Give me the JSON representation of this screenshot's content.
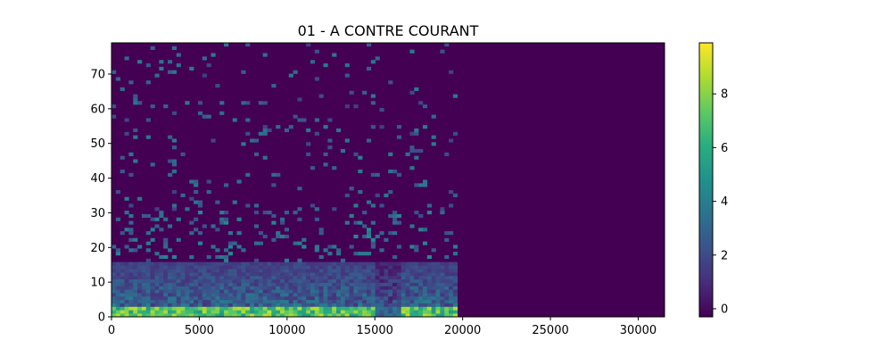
{
  "chart_data": {
    "type": "heatmap",
    "title": "01 - A CONTRE COURANT",
    "xlabel": "",
    "ylabel": "",
    "xlim": [
      0,
      31500
    ],
    "ylim": [
      0,
      79
    ],
    "x_ticks": [
      0,
      5000,
      10000,
      15000,
      20000,
      25000,
      30000
    ],
    "x_tick_labels": [
      "0",
      "5000",
      "10000",
      "15000",
      "20000",
      "25000",
      "30000"
    ],
    "y_ticks": [
      0,
      10,
      20,
      30,
      40,
      50,
      60,
      70
    ],
    "y_tick_labels": [
      "0",
      "10",
      "20",
      "30",
      "40",
      "50",
      "60",
      "70"
    ],
    "colorbar": {
      "range": [
        -0.3,
        9.9
      ],
      "ticks": [
        0,
        2,
        4,
        6,
        8
      ],
      "tick_labels": [
        "0",
        "2",
        "4",
        "6",
        "8"
      ],
      "colormap": "viridis"
    },
    "grid": false,
    "content_extent_x": [
      0,
      19700
    ],
    "columns": 80,
    "rows": 80,
    "colormap_stops": [
      "#440154",
      "#472d7b",
      "#3b528b",
      "#2c728e",
      "#21918c",
      "#28ae80",
      "#5ec962",
      "#addc30",
      "#fde725"
    ]
  }
}
